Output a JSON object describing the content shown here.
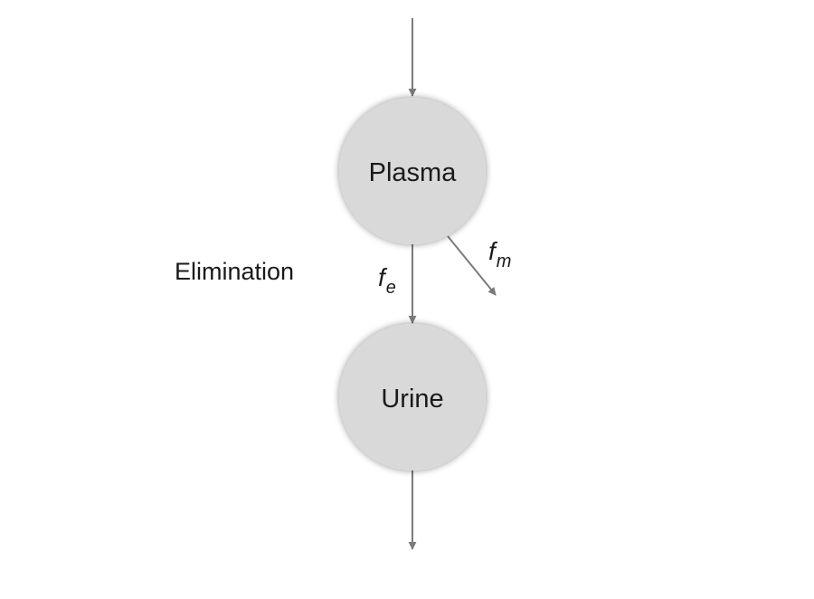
{
  "diagram": {
    "nodes": {
      "plasma": {
        "label": "Plasma"
      },
      "urine": {
        "label": "Urine"
      }
    },
    "side_label": "Elimination",
    "edges": {
      "fe": {
        "symbol": "f",
        "subscript": "e"
      },
      "fm": {
        "symbol": "f",
        "subscript": "m"
      }
    },
    "colors": {
      "node_fill": "#d9d9d9",
      "arrow": "#7a7a7a",
      "text": "#1a1a1a"
    }
  }
}
